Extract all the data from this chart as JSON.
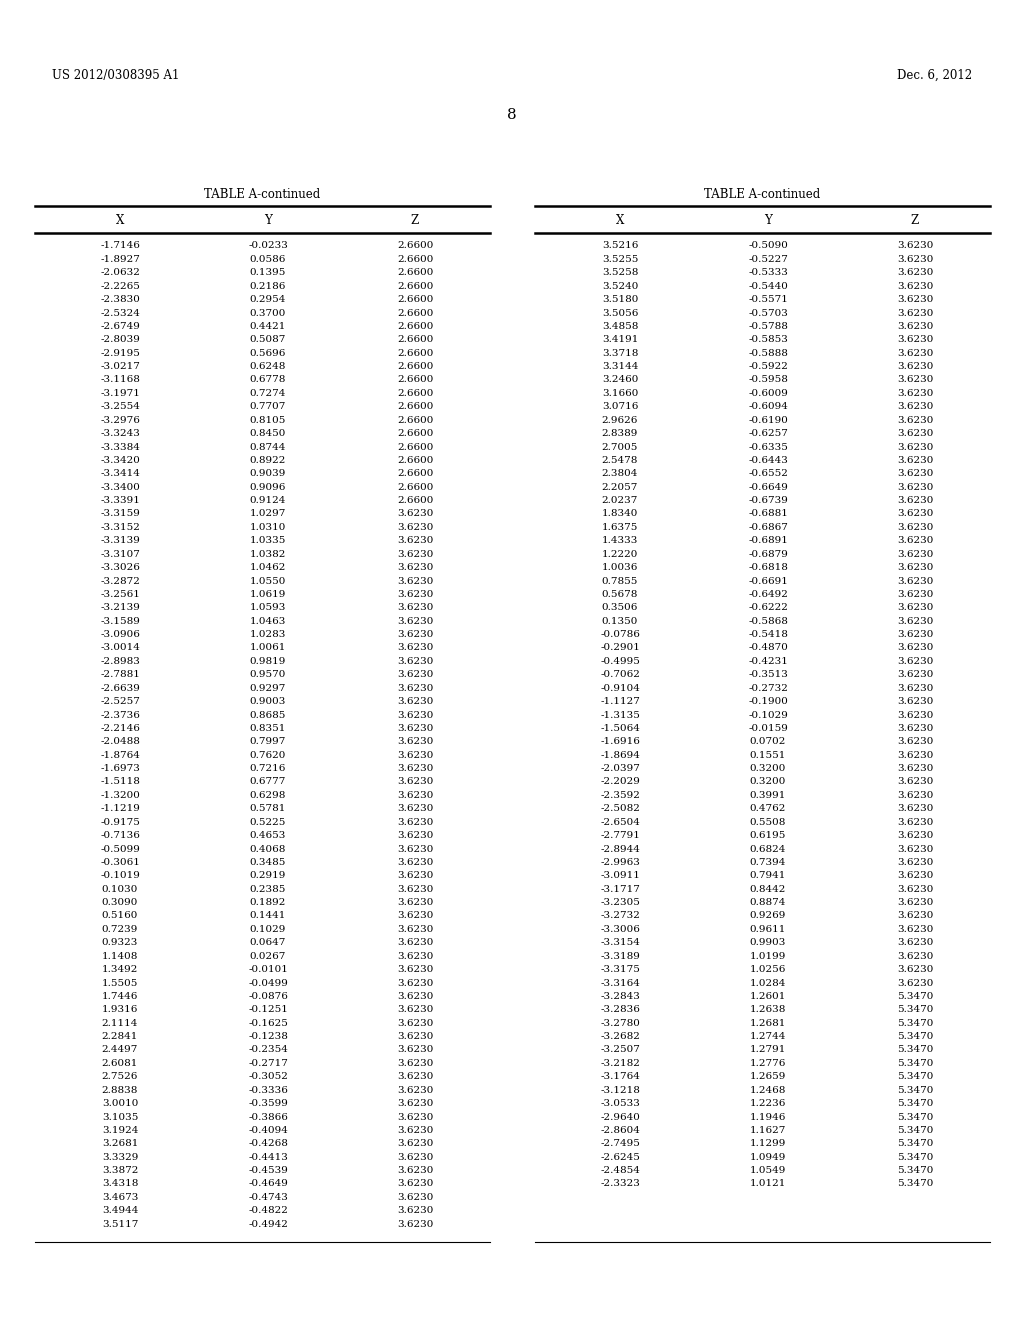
{
  "header_left": "US 2012/0308395 A1",
  "header_right": "Dec. 6, 2012",
  "page_number": "8",
  "table_title": "TABLE A-continued",
  "col_headers": [
    "X",
    "Y",
    "Z"
  ],
  "left_table": [
    [
      "-1.7146",
      "-0.0233",
      "2.6600"
    ],
    [
      "-1.8927",
      "0.0586",
      "2.6600"
    ],
    [
      "-2.0632",
      "0.1395",
      "2.6600"
    ],
    [
      "-2.2265",
      "0.2186",
      "2.6600"
    ],
    [
      "-2.3830",
      "0.2954",
      "2.6600"
    ],
    [
      "-2.5324",
      "0.3700",
      "2.6600"
    ],
    [
      "-2.6749",
      "0.4421",
      "2.6600"
    ],
    [
      "-2.8039",
      "0.5087",
      "2.6600"
    ],
    [
      "-2.9195",
      "0.5696",
      "2.6600"
    ],
    [
      "-3.0217",
      "0.6248",
      "2.6600"
    ],
    [
      "-3.1168",
      "0.6778",
      "2.6600"
    ],
    [
      "-3.1971",
      "0.7274",
      "2.6600"
    ],
    [
      "-3.2554",
      "0.7707",
      "2.6600"
    ],
    [
      "-3.2976",
      "0.8105",
      "2.6600"
    ],
    [
      "-3.3243",
      "0.8450",
      "2.6600"
    ],
    [
      "-3.3384",
      "0.8744",
      "2.6600"
    ],
    [
      "-3.3420",
      "0.8922",
      "2.6600"
    ],
    [
      "-3.3414",
      "0.9039",
      "2.6600"
    ],
    [
      "-3.3400",
      "0.9096",
      "2.6600"
    ],
    [
      "-3.3391",
      "0.9124",
      "2.6600"
    ],
    [
      "-3.3159",
      "1.0297",
      "3.6230"
    ],
    [
      "-3.3152",
      "1.0310",
      "3.6230"
    ],
    [
      "-3.3139",
      "1.0335",
      "3.6230"
    ],
    [
      "-3.3107",
      "1.0382",
      "3.6230"
    ],
    [
      "-3.3026",
      "1.0462",
      "3.6230"
    ],
    [
      "-3.2872",
      "1.0550",
      "3.6230"
    ],
    [
      "-3.2561",
      "1.0619",
      "3.6230"
    ],
    [
      "-3.2139",
      "1.0593",
      "3.6230"
    ],
    [
      "-3.1589",
      "1.0463",
      "3.6230"
    ],
    [
      "-3.0906",
      "1.0283",
      "3.6230"
    ],
    [
      "-3.0014",
      "1.0061",
      "3.6230"
    ],
    [
      "-2.8983",
      "0.9819",
      "3.6230"
    ],
    [
      "-2.7881",
      "0.9570",
      "3.6230"
    ],
    [
      "-2.6639",
      "0.9297",
      "3.6230"
    ],
    [
      "-2.5257",
      "0.9003",
      "3.6230"
    ],
    [
      "-2.3736",
      "0.8685",
      "3.6230"
    ],
    [
      "-2.2146",
      "0.8351",
      "3.6230"
    ],
    [
      "-2.0488",
      "0.7997",
      "3.6230"
    ],
    [
      "-1.8764",
      "0.7620",
      "3.6230"
    ],
    [
      "-1.6973",
      "0.7216",
      "3.6230"
    ],
    [
      "-1.5118",
      "0.6777",
      "3.6230"
    ],
    [
      "-1.3200",
      "0.6298",
      "3.6230"
    ],
    [
      "-1.1219",
      "0.5781",
      "3.6230"
    ],
    [
      "-0.9175",
      "0.5225",
      "3.6230"
    ],
    [
      "-0.7136",
      "0.4653",
      "3.6230"
    ],
    [
      "-0.5099",
      "0.4068",
      "3.6230"
    ],
    [
      "-0.3061",
      "0.3485",
      "3.6230"
    ],
    [
      "-0.1019",
      "0.2919",
      "3.6230"
    ],
    [
      "0.1030",
      "0.2385",
      "3.6230"
    ],
    [
      "0.3090",
      "0.1892",
      "3.6230"
    ],
    [
      "0.5160",
      "0.1441",
      "3.6230"
    ],
    [
      "0.7239",
      "0.1029",
      "3.6230"
    ],
    [
      "0.9323",
      "0.0647",
      "3.6230"
    ],
    [
      "1.1408",
      "0.0267",
      "3.6230"
    ],
    [
      "1.3492",
      "-0.0101",
      "3.6230"
    ],
    [
      "1.5505",
      "-0.0499",
      "3.6230"
    ],
    [
      "1.7446",
      "-0.0876",
      "3.6230"
    ],
    [
      "1.9316",
      "-0.1251",
      "3.6230"
    ],
    [
      "2.1114",
      "-0.1625",
      "3.6230"
    ],
    [
      "2.2841",
      "-0.1238",
      "3.6230"
    ],
    [
      "2.4497",
      "-0.2354",
      "3.6230"
    ],
    [
      "2.6081",
      "-0.2717",
      "3.6230"
    ],
    [
      "2.7526",
      "-0.3052",
      "3.6230"
    ],
    [
      "2.8838",
      "-0.3336",
      "3.6230"
    ],
    [
      "3.0010",
      "-0.3599",
      "3.6230"
    ],
    [
      "3.1035",
      "-0.3866",
      "3.6230"
    ],
    [
      "3.1924",
      "-0.4094",
      "3.6230"
    ],
    [
      "3.2681",
      "-0.4268",
      "3.6230"
    ],
    [
      "3.3329",
      "-0.4413",
      "3.6230"
    ],
    [
      "3.3872",
      "-0.4539",
      "3.6230"
    ],
    [
      "3.4318",
      "-0.4649",
      "3.6230"
    ],
    [
      "3.4673",
      "-0.4743",
      "3.6230"
    ],
    [
      "3.4944",
      "-0.4822",
      "3.6230"
    ],
    [
      "3.5117",
      "-0.4942",
      "3.6230"
    ]
  ],
  "right_table": [
    [
      "3.5216",
      "-0.5090",
      "3.6230"
    ],
    [
      "3.5255",
      "-0.5227",
      "3.6230"
    ],
    [
      "3.5258",
      "-0.5333",
      "3.6230"
    ],
    [
      "3.5240",
      "-0.5440",
      "3.6230"
    ],
    [
      "3.5180",
      "-0.5571",
      "3.6230"
    ],
    [
      "3.5056",
      "-0.5703",
      "3.6230"
    ],
    [
      "3.4858",
      "-0.5788",
      "3.6230"
    ],
    [
      "3.4191",
      "-0.5853",
      "3.6230"
    ],
    [
      "3.3718",
      "-0.5888",
      "3.6230"
    ],
    [
      "3.3144",
      "-0.5922",
      "3.6230"
    ],
    [
      "3.2460",
      "-0.5958",
      "3.6230"
    ],
    [
      "3.1660",
      "-0.6009",
      "3.6230"
    ],
    [
      "3.0716",
      "-0.6094",
      "3.6230"
    ],
    [
      "2.9626",
      "-0.6190",
      "3.6230"
    ],
    [
      "2.8389",
      "-0.6257",
      "3.6230"
    ],
    [
      "2.7005",
      "-0.6335",
      "3.6230"
    ],
    [
      "2.5478",
      "-0.6443",
      "3.6230"
    ],
    [
      "2.3804",
      "-0.6552",
      "3.6230"
    ],
    [
      "2.2057",
      "-0.6649",
      "3.6230"
    ],
    [
      "2.0237",
      "-0.6739",
      "3.6230"
    ],
    [
      "1.8340",
      "-0.6881",
      "3.6230"
    ],
    [
      "1.6375",
      "-0.6867",
      "3.6230"
    ],
    [
      "1.4333",
      "-0.6891",
      "3.6230"
    ],
    [
      "1.2220",
      "-0.6879",
      "3.6230"
    ],
    [
      "1.0036",
      "-0.6818",
      "3.6230"
    ],
    [
      "0.7855",
      "-0.6691",
      "3.6230"
    ],
    [
      "0.5678",
      "-0.6492",
      "3.6230"
    ],
    [
      "0.3506",
      "-0.6222",
      "3.6230"
    ],
    [
      "0.1350",
      "-0.5868",
      "3.6230"
    ],
    [
      "-0.0786",
      "-0.5418",
      "3.6230"
    ],
    [
      "-0.2901",
      "-0.4870",
      "3.6230"
    ],
    [
      "-0.4995",
      "-0.4231",
      "3.6230"
    ],
    [
      "-0.7062",
      "-0.3513",
      "3.6230"
    ],
    [
      "-0.9104",
      "-0.2732",
      "3.6230"
    ],
    [
      "-1.1127",
      "-0.1900",
      "3.6230"
    ],
    [
      "-1.3135",
      "-0.1029",
      "3.6230"
    ],
    [
      "-1.5064",
      "-0.0159",
      "3.6230"
    ],
    [
      "-1.6916",
      "0.0702",
      "3.6230"
    ],
    [
      "-1.8694",
      "0.1551",
      "3.6230"
    ],
    [
      "-2.0397",
      "0.3200",
      "3.6230"
    ],
    [
      "-2.2029",
      "0.3200",
      "3.6230"
    ],
    [
      "-2.3592",
      "0.3991",
      "3.6230"
    ],
    [
      "-2.5082",
      "0.4762",
      "3.6230"
    ],
    [
      "-2.6504",
      "0.5508",
      "3.6230"
    ],
    [
      "-2.7791",
      "0.6195",
      "3.6230"
    ],
    [
      "-2.8944",
      "0.6824",
      "3.6230"
    ],
    [
      "-2.9963",
      "0.7394",
      "3.6230"
    ],
    [
      "-3.0911",
      "0.7941",
      "3.6230"
    ],
    [
      "-3.1717",
      "0.8442",
      "3.6230"
    ],
    [
      "-3.2305",
      "0.8874",
      "3.6230"
    ],
    [
      "-3.2732",
      "0.9269",
      "3.6230"
    ],
    [
      "-3.3006",
      "0.9611",
      "3.6230"
    ],
    [
      "-3.3154",
      "0.9903",
      "3.6230"
    ],
    [
      "-3.3189",
      "1.0199",
      "3.6230"
    ],
    [
      "-3.3175",
      "1.0256",
      "3.6230"
    ],
    [
      "-3.3164",
      "1.0284",
      "3.6230"
    ],
    [
      "-3.2843",
      "1.2601",
      "5.3470"
    ],
    [
      "-3.2836",
      "1.2638",
      "5.3470"
    ],
    [
      "-3.2780",
      "1.2681",
      "5.3470"
    ],
    [
      "-3.2682",
      "1.2744",
      "5.3470"
    ],
    [
      "-3.2507",
      "1.2791",
      "5.3470"
    ],
    [
      "-3.2182",
      "1.2776",
      "5.3470"
    ],
    [
      "-3.1764",
      "1.2659",
      "5.3470"
    ],
    [
      "-3.1218",
      "1.2468",
      "5.3470"
    ],
    [
      "-3.0533",
      "1.2236",
      "5.3470"
    ],
    [
      "-2.9640",
      "1.1946",
      "5.3470"
    ],
    [
      "-2.8604",
      "1.1627",
      "5.3470"
    ],
    [
      "-2.7495",
      "1.1299",
      "5.3470"
    ],
    [
      "-2.6245",
      "1.0949",
      "5.3470"
    ],
    [
      "-2.4854",
      "1.0549",
      "5.3470"
    ],
    [
      "-2.3323",
      "1.0121",
      "5.3470"
    ]
  ]
}
